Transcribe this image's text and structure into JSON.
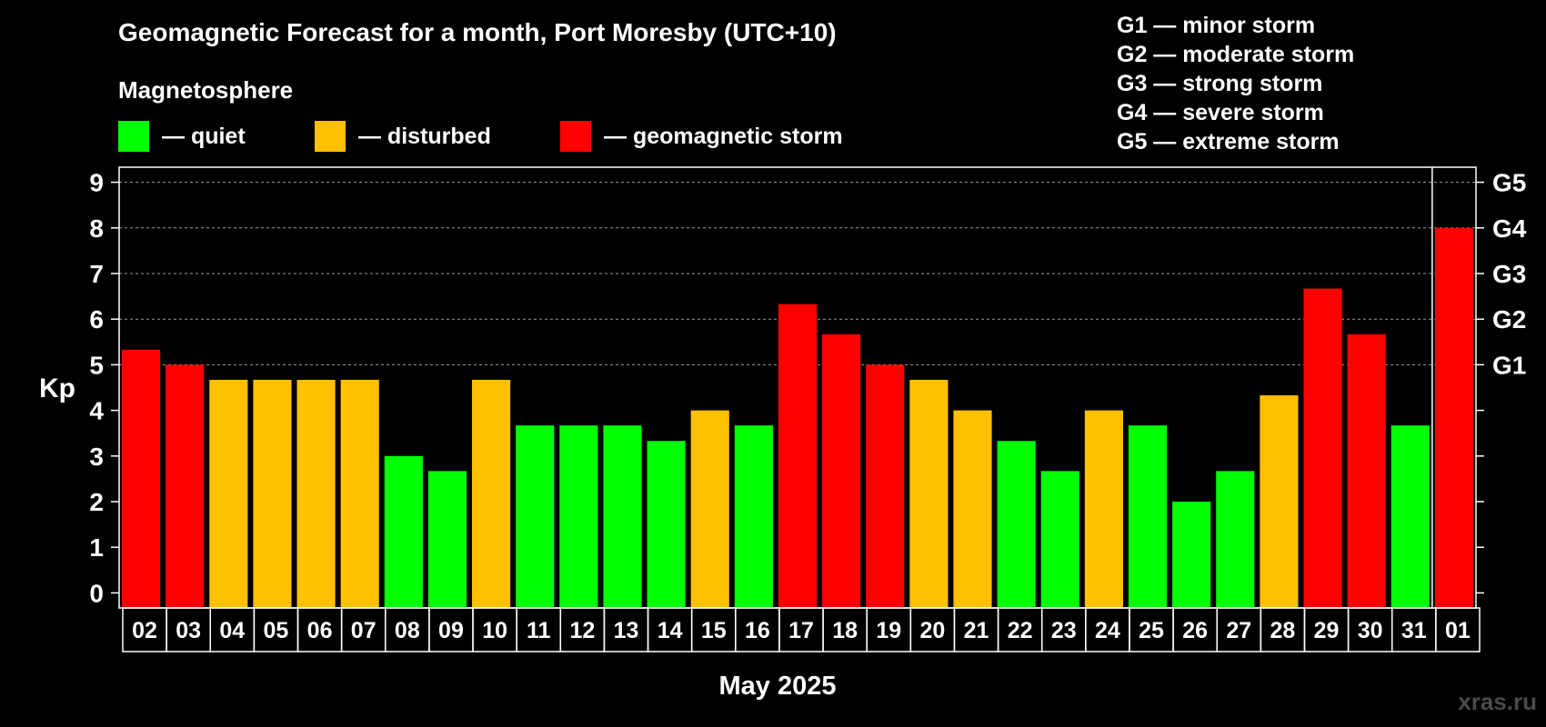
{
  "title": "Geomagnetic Forecast for a month, Port Moresby (UTC+10)",
  "subtitle": "Magnetosphere",
  "legend": [
    {
      "label": "— quiet",
      "color": "#00ff00"
    },
    {
      "label": "— disturbed",
      "color": "#ffc000"
    },
    {
      "label": "— geomagnetic storm",
      "color": "#ff0000"
    }
  ],
  "g_scale": [
    "G1 — minor storm",
    "G2 — moderate storm",
    "G3 — strong storm",
    "G4 — severe storm",
    "G5 — extreme storm"
  ],
  "watermark": "xras.ru",
  "colors": {
    "quiet": "#00ff00",
    "disturbed": "#ffc000",
    "storm": "#ff0000",
    "background": "#000000",
    "grid": "#9a9a9a"
  },
  "chart_data": {
    "type": "bar",
    "xlabel": "May 2025",
    "ylabel": "Kp",
    "ylim": [
      -0.33,
      9.33
    ],
    "y_ticks": [
      0,
      1,
      2,
      3,
      4,
      5,
      6,
      7,
      8,
      9
    ],
    "grid": "horizontal dashed at Kp 5-9",
    "right_axis_labels": [
      {
        "kp": 5,
        "label": "G1"
      },
      {
        "kp": 6,
        "label": "G2"
      },
      {
        "kp": 7,
        "label": "G3"
      },
      {
        "kp": 8,
        "label": "G4"
      },
      {
        "kp": 9,
        "label": "G5"
      }
    ],
    "categories": [
      "02",
      "03",
      "04",
      "05",
      "06",
      "07",
      "08",
      "09",
      "10",
      "11",
      "12",
      "13",
      "14",
      "15",
      "16",
      "17",
      "18",
      "19",
      "20",
      "21",
      "22",
      "23",
      "24",
      "25",
      "26",
      "27",
      "28",
      "29",
      "30",
      "31",
      "01"
    ],
    "values": [
      5.33,
      5.0,
      4.67,
      4.67,
      4.67,
      4.67,
      3.0,
      2.67,
      4.67,
      3.67,
      3.67,
      3.67,
      3.33,
      4.0,
      3.67,
      6.33,
      5.67,
      5.0,
      4.67,
      4.0,
      3.33,
      2.67,
      4.0,
      3.67,
      2.0,
      2.67,
      4.33,
      6.67,
      5.67,
      3.67,
      8.0
    ],
    "levels": [
      "storm",
      "storm",
      "disturbed",
      "disturbed",
      "disturbed",
      "disturbed",
      "quiet",
      "quiet",
      "disturbed",
      "quiet",
      "quiet",
      "quiet",
      "quiet",
      "disturbed",
      "quiet",
      "storm",
      "storm",
      "storm",
      "disturbed",
      "disturbed",
      "quiet",
      "quiet",
      "disturbed",
      "quiet",
      "quiet",
      "quiet",
      "disturbed",
      "storm",
      "storm",
      "quiet",
      "storm"
    ]
  }
}
